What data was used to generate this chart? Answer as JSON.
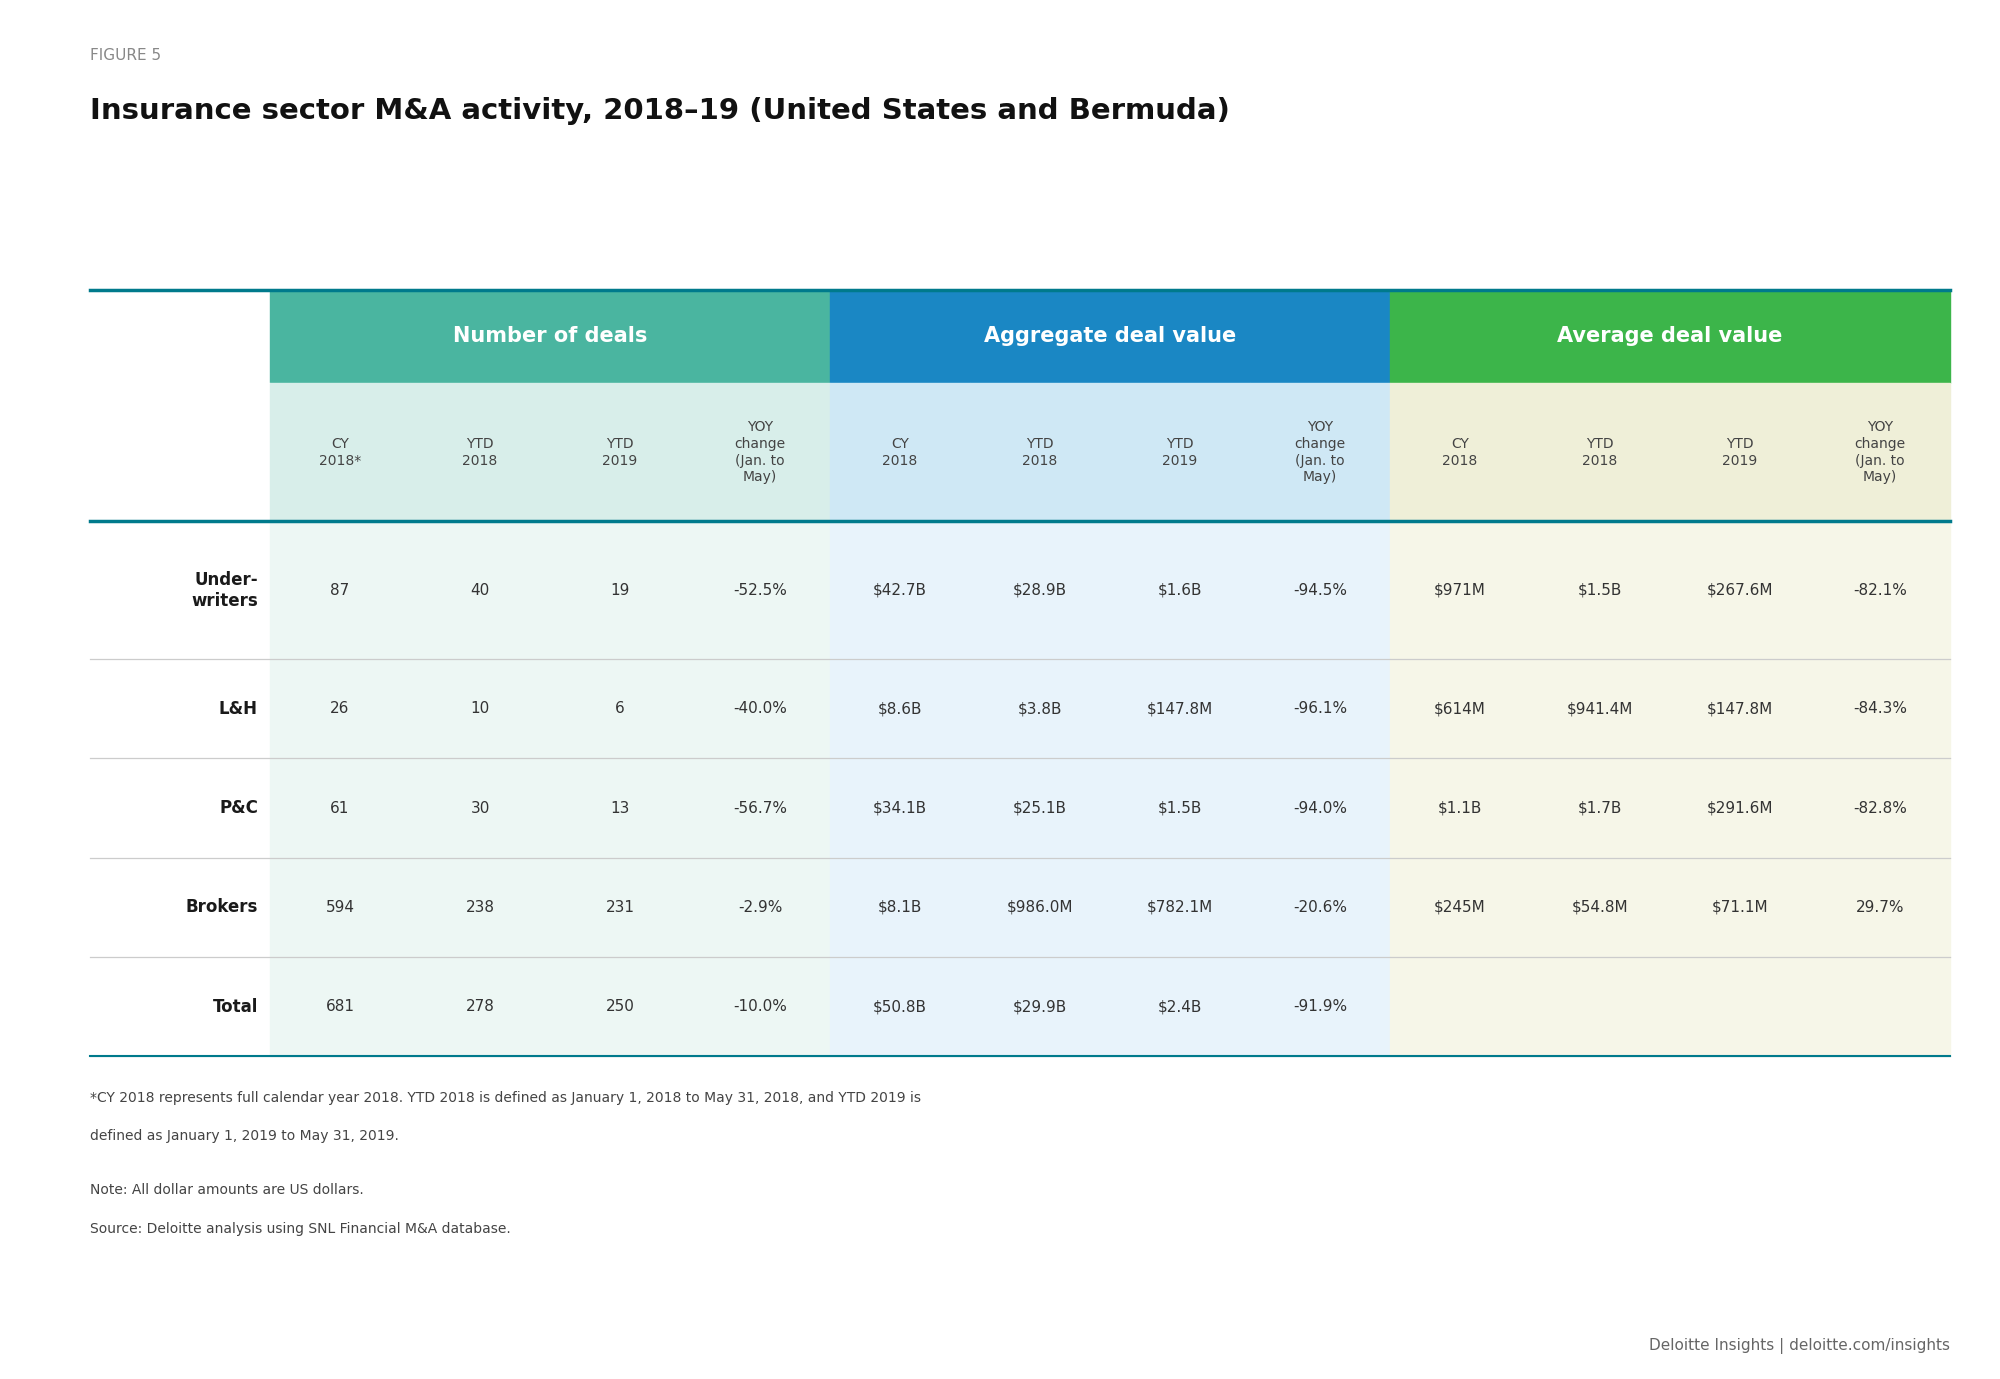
{
  "figure_label": "FIGURE 5",
  "title": "Insurance sector M&A activity, 2018–19 (United States and Bermuda)",
  "col_group_headers": [
    {
      "text": "Number of deals",
      "color": "#4ab5a0",
      "span": [
        1,
        4
      ]
    },
    {
      "text": "Aggregate deal value",
      "color": "#1a87c4",
      "span": [
        5,
        8
      ]
    },
    {
      "text": "Average deal value",
      "color": "#3cb54a",
      "span": [
        9,
        12
      ]
    }
  ],
  "col_headers": [
    "CY\n2018*",
    "YTD\n2018",
    "YTD\n2019",
    "YOY\nchange\n(Jan. to\nMay)",
    "CY\n2018",
    "YTD\n2018",
    "YTD\n2019",
    "YOY\nchange\n(Jan. to\nMay)",
    "CY\n2018",
    "YTD\n2018",
    "YTD\n2019",
    "YOY\nchange\n(Jan. to\nMay)"
  ],
  "col_header_bg_colors": [
    "#d8eeea",
    "#d8eeea",
    "#d8eeea",
    "#d8eeea",
    "#cfe8f5",
    "#cfe8f5",
    "#cfe8f5",
    "#cfe8f5",
    "#efefd8",
    "#efefd8",
    "#efefd8",
    "#efefd8"
  ],
  "section_colors": [
    "#edf7f4",
    "#e8f3fb",
    "#f6f6e8"
  ],
  "row_labels": [
    "Under-\nwriters",
    "L&H",
    "P&C",
    "Brokers",
    "Total"
  ],
  "row_label_bold": [
    true,
    false,
    false,
    true,
    true
  ],
  "table_data": [
    [
      "87",
      "40",
      "19",
      "-52.5%",
      "$42.7B",
      "$28.9B",
      "$1.6B",
      "-94.5%",
      "$971M",
      "$1.5B",
      "$267.6M",
      "-82.1%"
    ],
    [
      "26",
      "10",
      "6",
      "-40.0%",
      "$8.6B",
      "$3.8B",
      "$147.8M",
      "-96.1%",
      "$614M",
      "$941.4M",
      "$147.8M",
      "-84.3%"
    ],
    [
      "61",
      "30",
      "13",
      "-56.7%",
      "$34.1B",
      "$25.1B",
      "$1.5B",
      "-94.0%",
      "$1.1B",
      "$1.7B",
      "$291.6M",
      "-82.8%"
    ],
    [
      "594",
      "238",
      "231",
      "-2.9%",
      "$8.1B",
      "$986.0M",
      "$782.1M",
      "-20.6%",
      "$245M",
      "$54.8M",
      "$71.1M",
      "29.7%"
    ],
    [
      "681",
      "278",
      "250",
      "-10.0%",
      "$50.8B",
      "$29.9B",
      "$2.4B",
      "-91.9%",
      "",
      "",
      "",
      ""
    ]
  ],
  "footer_line1": "*CY 2018 represents full calendar year 2018. YTD 2018 is defined as January 1, 2018 to May 31, 2018, and YTD 2019 is",
  "footer_line2": "defined as January 1, 2019 to May 31, 2019.",
  "footer_line3": "Note: All dollar amounts are US dollars.",
  "footer_line4": "Source: Deloitte analysis using SNL Financial M&A database.",
  "branding": "Deloitte Insights | deloitte.com/insights",
  "bg_color": "#ffffff",
  "teal_line_color": "#007a8c",
  "text_color": "#333333",
  "row_line_color": "#cccccc",
  "figure_label_color": "#888888",
  "title_color": "#111111",
  "branding_color": "#666666"
}
